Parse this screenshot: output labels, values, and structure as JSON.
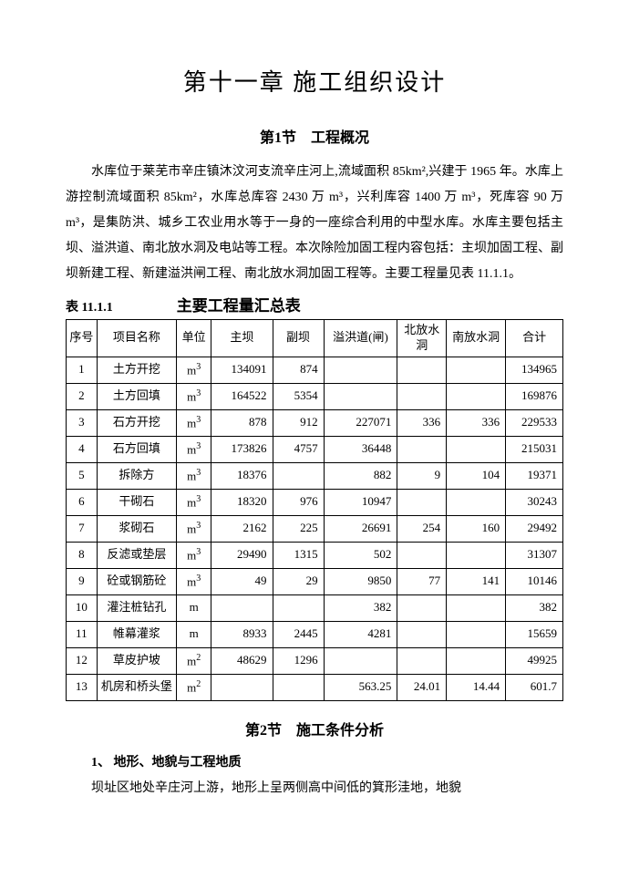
{
  "chapter_title": "第十一章  施工组织设计",
  "section1_title": "第1节　工程概况",
  "paragraph1": "水库位于莱芜市辛庄镇沐汶河支流辛庄河上,流域面积 85km²,兴建于 1965 年。水库上游控制流域面积 85km²，水库总库容 2430 万 m³，兴利库容 1400 万 m³，死库容 90 万 m³，是集防洪、城乡工农业用水等于一身的一座综合利用的中型水库。水库主要包括主坝、溢洪道、南北放水洞及电站等工程。本次除险加固工程内容包括：主坝加固工程、副坝新建工程、新建溢洪闸工程、南北放水洞加固工程等。主要工程量见表 11.1.1。",
  "table_num": "表 11.1.1",
  "table_title": "主要工程量汇总表",
  "columns": [
    "序号",
    "项目名称",
    "单位",
    "主坝",
    "副坝",
    "溢洪道(闸)",
    "北放水洞",
    "南放水洞",
    "合计"
  ],
  "col_widths": [
    "30px",
    "78px",
    "34px",
    "60px",
    "50px",
    "72px",
    "48px",
    "58px",
    "56px"
  ],
  "rows": [
    [
      "1",
      "土方开挖",
      "m³",
      "134091",
      "874",
      "",
      "",
      "",
      "134965"
    ],
    [
      "2",
      "土方回填",
      "m³",
      "164522",
      "5354",
      "",
      "",
      "",
      "169876"
    ],
    [
      "3",
      "石方开挖",
      "m³",
      "878",
      "912",
      "227071",
      "336",
      "336",
      "229533"
    ],
    [
      "4",
      "石方回填",
      "m³",
      "173826",
      "4757",
      "36448",
      "",
      "",
      "215031"
    ],
    [
      "5",
      "拆除方",
      "m³",
      "18376",
      "",
      "882",
      "9",
      "104",
      "19371"
    ],
    [
      "6",
      "干砌石",
      "m³",
      "18320",
      "976",
      "10947",
      "",
      "",
      "30243"
    ],
    [
      "7",
      "浆砌石",
      "m³",
      "2162",
      "225",
      "26691",
      "254",
      "160",
      "29492"
    ],
    [
      "8",
      "反滤或垫层",
      "m³",
      "29490",
      "1315",
      "502",
      "",
      "",
      "31307"
    ],
    [
      "9",
      "砼或钢筋砼",
      "m³",
      "49",
      "29",
      "9850",
      "77",
      "141",
      "10146"
    ],
    [
      "10",
      "灌注桩钻孔",
      "m",
      "",
      "",
      "382",
      "",
      "",
      "382"
    ],
    [
      "11",
      "帷幕灌浆",
      "m",
      "8933",
      "2445",
      "4281",
      "",
      "",
      "15659"
    ],
    [
      "12",
      "草皮护坡",
      "m²",
      "48629",
      "1296",
      "",
      "",
      "",
      "49925"
    ],
    [
      "13",
      "机房和桥头堡",
      "m²",
      "",
      "",
      "563.25",
      "24.01",
      "14.44",
      "601.7"
    ]
  ],
  "section2_title": "第2节　施工条件分析",
  "sub_heading": "1、 地形、地貌与工程地质",
  "paragraph2": "坝址区地处辛庄河上游，地形上呈两侧高中间低的箕形洼地，地貌"
}
